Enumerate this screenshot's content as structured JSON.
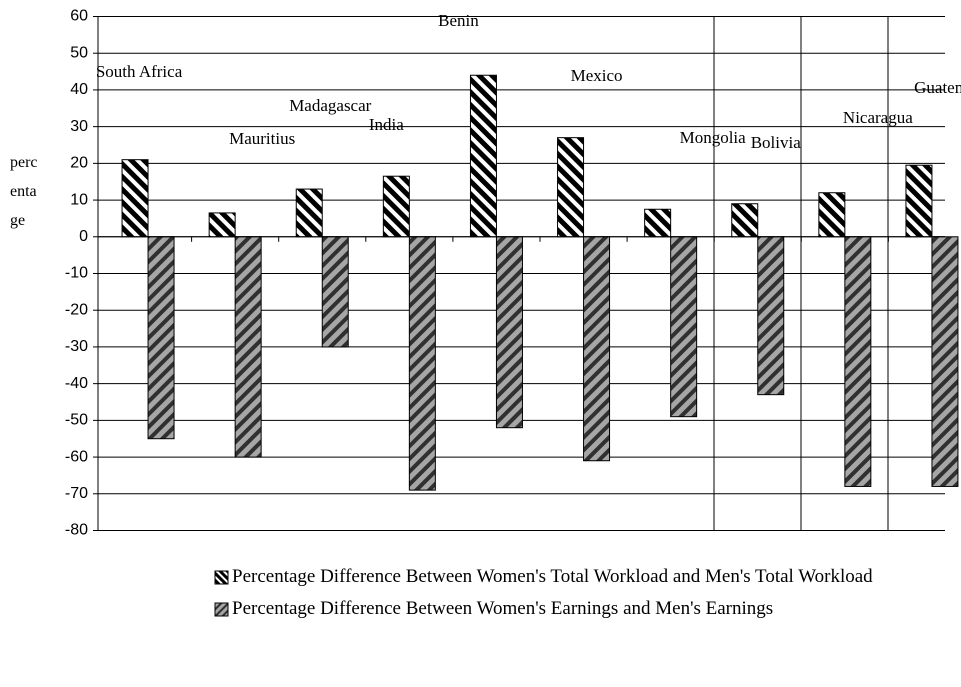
{
  "chart_data": {
    "type": "bar",
    "y_label": "percentage",
    "categories": [
      "South Africa",
      "Mauritius",
      "Madagascar",
      "India",
      "Benin",
      "Mexico",
      "Mongolia",
      "Bolivia",
      "Nicaragua",
      "Guatemala"
    ],
    "series": [
      {
        "name": "Percentage Difference Between Women's Total Workload and Men's Total Workload",
        "color": "#000000",
        "values": [
          21,
          6.5,
          13,
          16.5,
          44,
          27,
          7.5,
          9,
          12,
          19.5
        ]
      },
      {
        "name": "Percentage Difference Between Women's Earnings and Men's Earnings",
        "color": "#a6a6a6",
        "values": [
          -55,
          -60,
          -30,
          -69,
          -52,
          -61,
          -49,
          -43,
          -68,
          -68
        ]
      }
    ],
    "ylim": [
      -80,
      60
    ],
    "yticks": [
      -80,
      -70,
      -60,
      -50,
      -40,
      -30,
      -20,
      -10,
      0,
      10,
      20,
      30,
      40,
      50,
      60
    ],
    "grid": true,
    "legend": "bottom"
  }
}
